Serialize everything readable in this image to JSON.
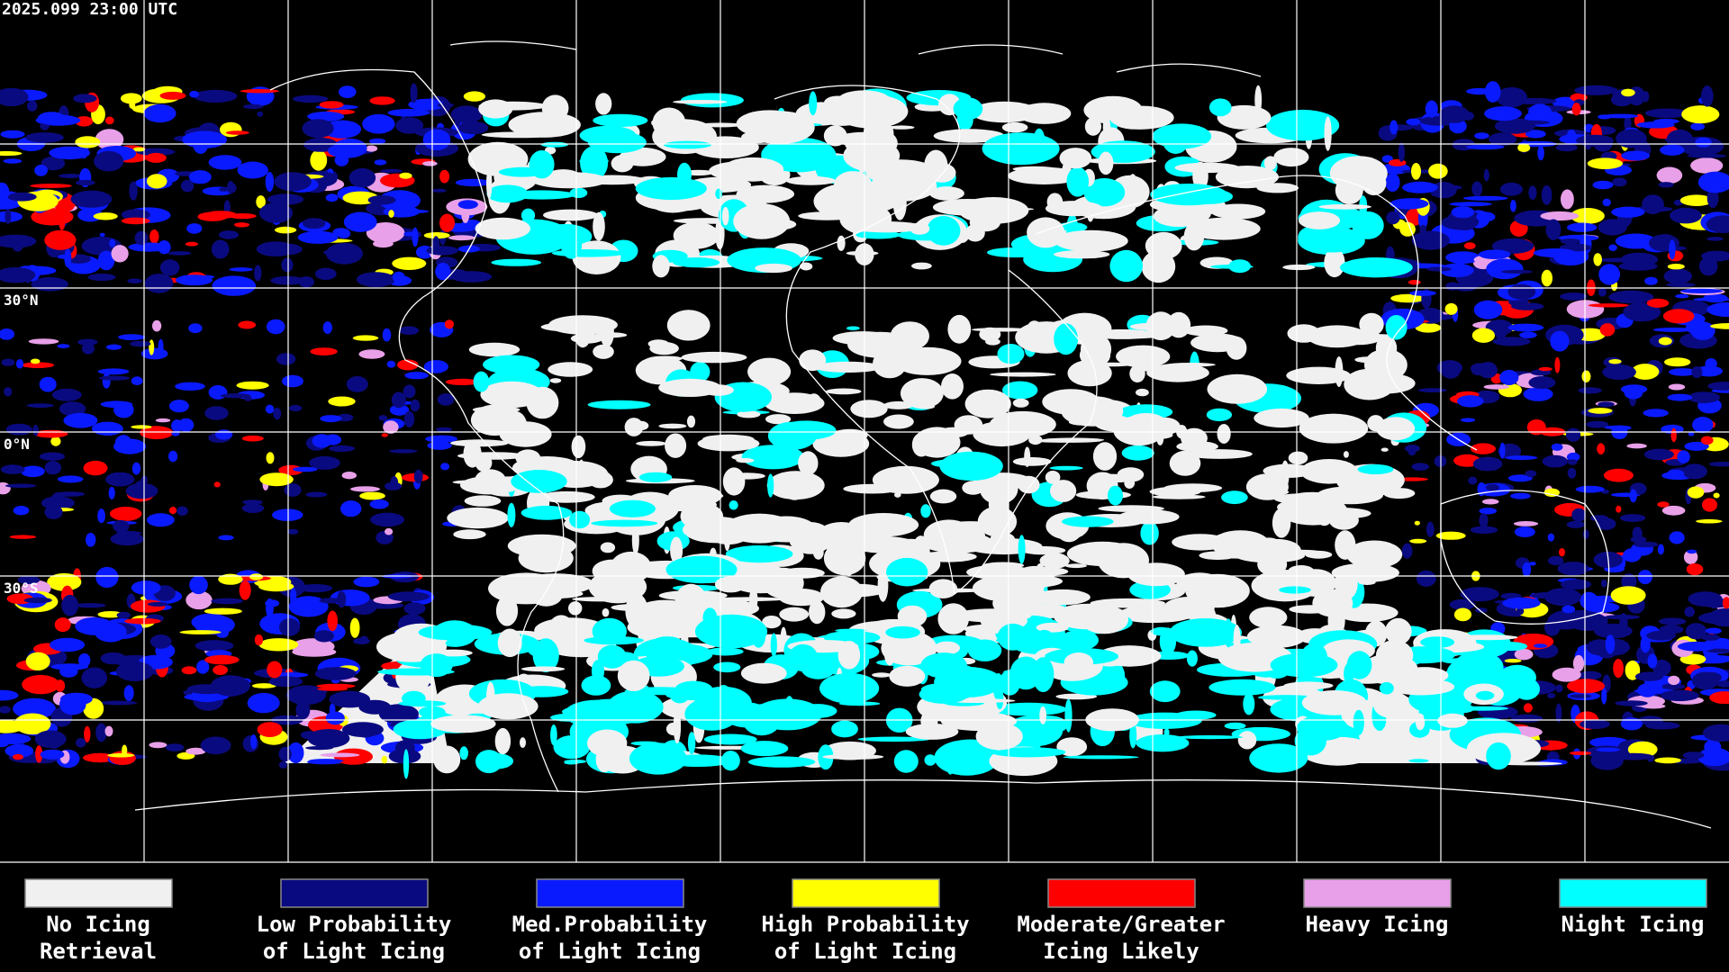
{
  "timestamp": "2025.099 23:00 UTC",
  "latitude_labels": [
    "30°N",
    "0°N",
    "30°S"
  ],
  "legend": [
    {
      "lines": [
        "No Icing",
        "Retrieval"
      ],
      "color": "#f0f0f0"
    },
    {
      "lines": [
        "Low Probability",
        "of Light Icing"
      ],
      "color": "#0a0a80"
    },
    {
      "lines": [
        "Med.Probability",
        "of Light Icing"
      ],
      "color": "#0a1aff"
    },
    {
      "lines": [
        "High Probability",
        "of Light Icing"
      ],
      "color": "#ffff00"
    },
    {
      "lines": [
        "Moderate/Greater",
        "Icing Likely"
      ],
      "color": "#ff0000"
    },
    {
      "lines": [
        "Heavy Icing"
      ],
      "color": "#e8a0e8"
    },
    {
      "lines": [
        "Night Icing"
      ],
      "color": "#00ffff"
    }
  ]
}
